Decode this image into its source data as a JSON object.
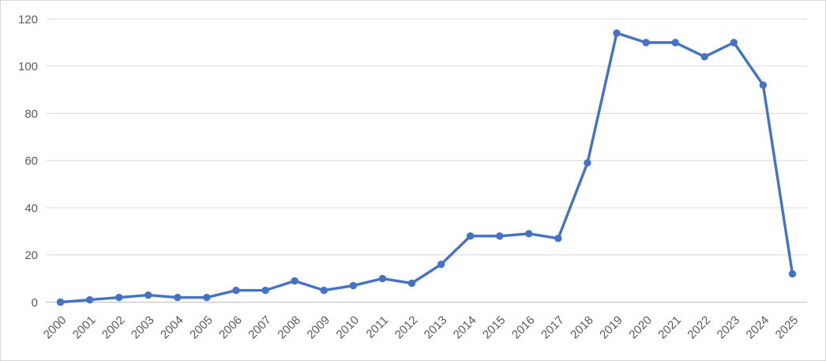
{
  "chart_data": {
    "type": "line",
    "title": "",
    "xlabel": "",
    "ylabel": "",
    "categories": [
      "2000",
      "2001",
      "2002",
      "2003",
      "2004",
      "2005",
      "2006",
      "2007",
      "2008",
      "2009",
      "2010",
      "2011",
      "2012",
      "2013",
      "2014",
      "2015",
      "2016",
      "2017",
      "2018",
      "2019",
      "2020",
      "2021",
      "2022",
      "2023",
      "2024",
      "2025"
    ],
    "values": [
      0,
      1,
      2,
      3,
      2,
      2,
      5,
      5,
      9,
      5,
      7,
      10,
      8,
      16,
      28,
      28,
      29,
      27,
      59,
      114,
      110,
      110,
      104,
      110,
      92,
      12
    ],
    "ylim": [
      0,
      120
    ],
    "yticks": [
      0,
      20,
      40,
      60,
      80,
      100,
      120
    ],
    "grid": true,
    "legend": "none",
    "marker": "circle",
    "x_label_rotation": -45
  },
  "colors": {
    "line": "#4472C4",
    "marker": "#4472C4",
    "gridline": "#D9D9D9",
    "axis_line": "#BFBFBF",
    "tick_label": "#595959",
    "background": "#FFFFFF",
    "border": "#D6D6D6"
  }
}
